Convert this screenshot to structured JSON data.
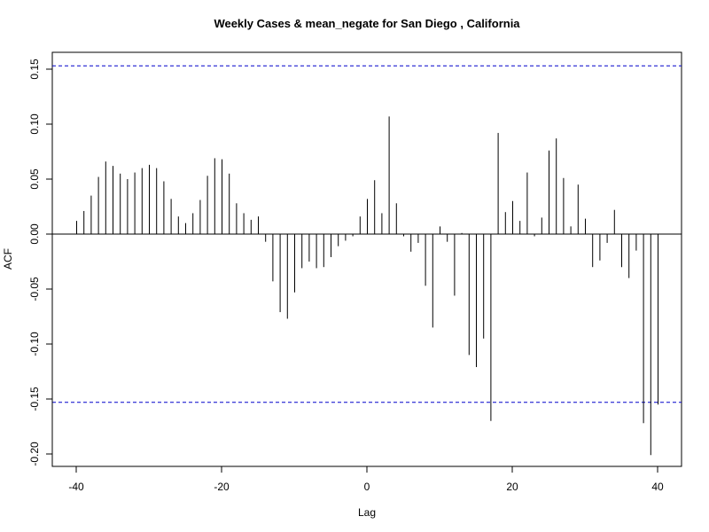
{
  "chart_data": {
    "type": "bar",
    "title": "Weekly Cases & mean_negate for San Diego , California",
    "xlabel": "Lag",
    "ylabel": "ACF",
    "xlim": [
      -40,
      40
    ],
    "ylim": [
      -0.21,
      0.165
    ],
    "xticks": [
      -40,
      -20,
      0,
      20,
      40
    ],
    "xtick_labels": [
      "-40",
      "-20",
      "0",
      "20",
      "40"
    ],
    "yticks": [
      -0.2,
      -0.15,
      -0.1,
      -0.05,
      0.0,
      0.05,
      0.1,
      0.15
    ],
    "ytick_labels": [
      "-0.20",
      "-0.15",
      "-0.10",
      "-0.05",
      "0.00",
      "0.05",
      "0.10",
      "0.15"
    ],
    "confidence_band": 0.153,
    "confidence_color": "#0000cc",
    "bar_color": "#000000",
    "lags": [
      -40,
      -39,
      -38,
      -37,
      -36,
      -35,
      -34,
      -33,
      -32,
      -31,
      -30,
      -29,
      -28,
      -27,
      -26,
      -25,
      -24,
      -23,
      -22,
      -21,
      -20,
      -19,
      -18,
      -17,
      -16,
      -15,
      -14,
      -13,
      -12,
      -11,
      -10,
      -9,
      -8,
      -7,
      -6,
      -5,
      -4,
      -3,
      -2,
      -1,
      0,
      1,
      2,
      3,
      4,
      5,
      6,
      7,
      8,
      9,
      10,
      11,
      12,
      13,
      14,
      15,
      16,
      17,
      18,
      19,
      20,
      21,
      22,
      23,
      24,
      25,
      26,
      27,
      28,
      29,
      30,
      31,
      32,
      33,
      34,
      35,
      36,
      37,
      38,
      39,
      40
    ],
    "values": [
      0.012,
      0.021,
      0.035,
      0.052,
      0.066,
      0.062,
      0.055,
      0.05,
      0.056,
      0.06,
      0.063,
      0.06,
      0.048,
      0.032,
      0.016,
      0.01,
      0.019,
      0.031,
      0.053,
      0.069,
      0.068,
      0.055,
      0.028,
      0.019,
      0.013,
      0.016,
      -0.007,
      -0.043,
      -0.071,
      -0.077,
      -0.053,
      -0.031,
      -0.025,
      -0.031,
      -0.03,
      -0.021,
      -0.011,
      -0.006,
      -0.002,
      0.016,
      0.032,
      0.049,
      0.019,
      0.107,
      0.028,
      -0.002,
      -0.016,
      -0.008,
      -0.047,
      -0.085,
      0.007,
      -0.007,
      -0.056,
      0.001,
      -0.11,
      -0.121,
      -0.095,
      -0.17,
      0.092,
      0.02,
      0.03,
      0.012,
      0.056,
      -0.002,
      0.015,
      0.076,
      0.087,
      0.051,
      0.007,
      0.045,
      0.014,
      -0.03,
      -0.024,
      -0.008,
      0.022,
      -0.03,
      -0.04,
      -0.015,
      -0.172,
      -0.201,
      -0.155
    ]
  }
}
